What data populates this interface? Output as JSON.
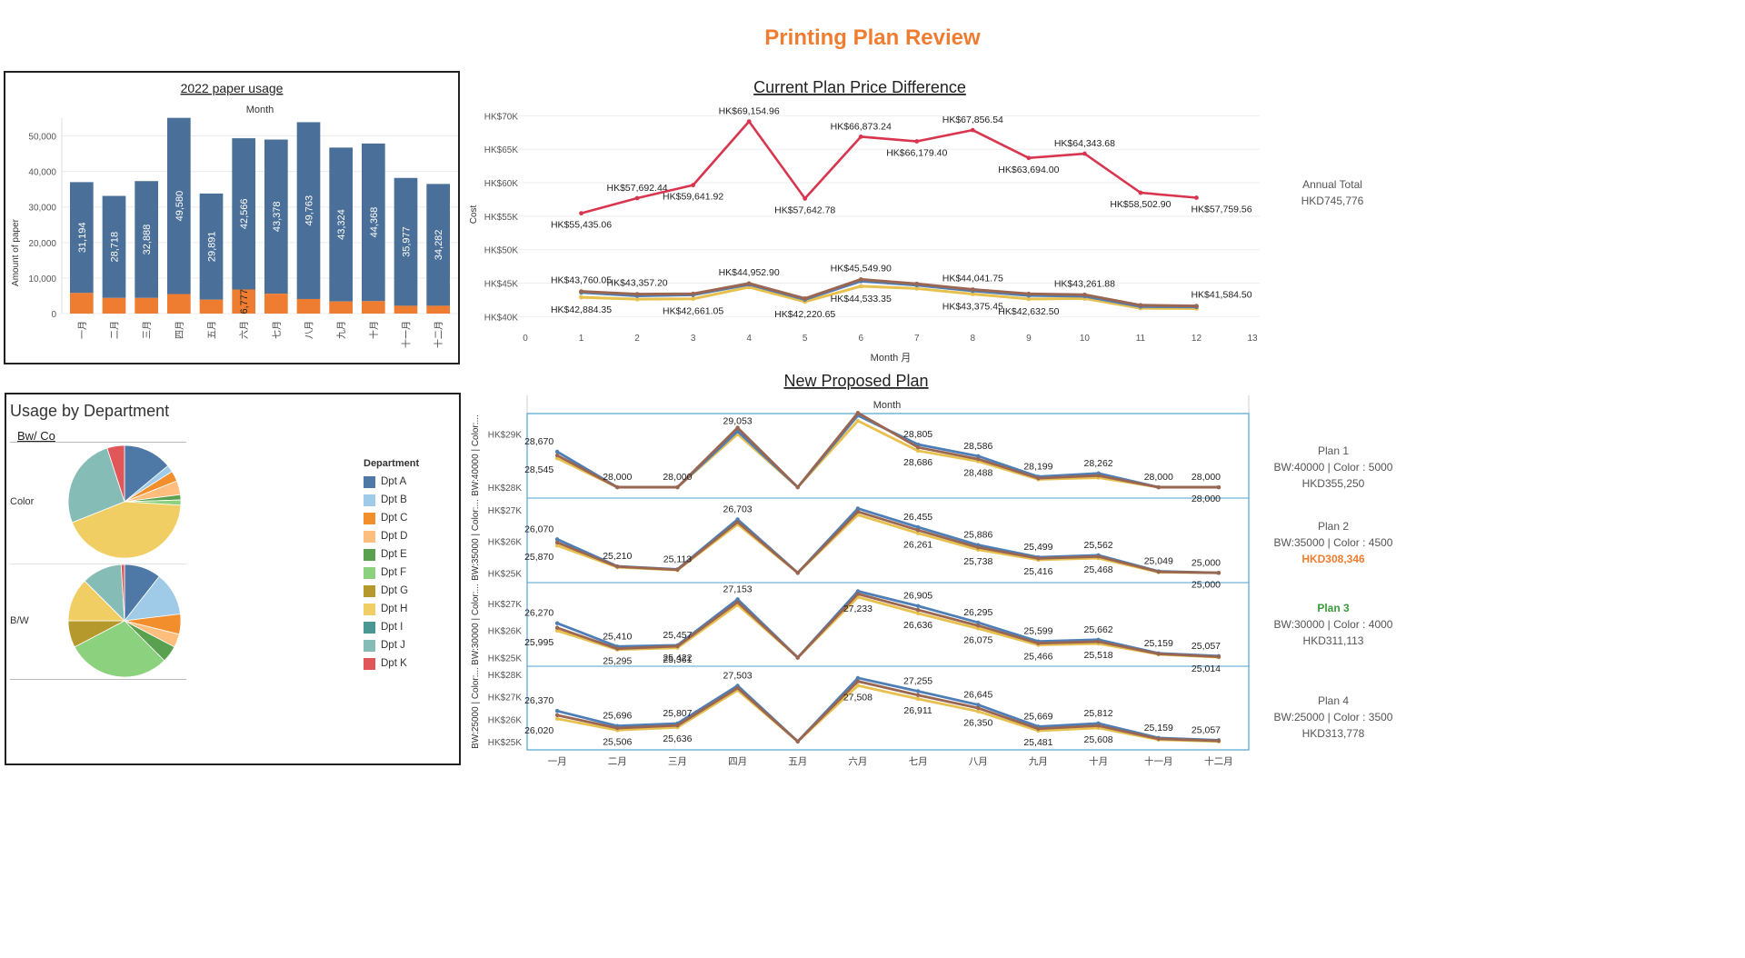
{
  "page_title": "Printing Plan Review",
  "colors": {
    "accent_orange": "#ef7d31",
    "bw_blue": "#4a6f98",
    "color_orange": "#ef7d31",
    "red_line": "#d9354f",
    "green_text": "#3a9b3a",
    "l_blue": "#4d7fb6",
    "l_brown": "#9a6652",
    "l_yellow": "#e7c04d"
  },
  "paper_usage": {
    "title": "2022 paper usage",
    "top_label": "Month",
    "ylabel": "Amount of paper",
    "yticks": [
      "50,000",
      "40,000",
      "30,000",
      "20,000",
      "10,000",
      "0"
    ]
  },
  "price_diff": {
    "title": "Current Plan Price Difference",
    "ylabel": "Cost",
    "xlabel": "Month 月",
    "yticks": [
      "HK$70K",
      "HK$65K",
      "HK$60K",
      "HK$55K",
      "HK$50K",
      "HK$45K",
      "HK$40K"
    ],
    "xticks": [
      "0",
      "1",
      "2",
      "3",
      "4",
      "5",
      "6",
      "7",
      "8",
      "9",
      "10",
      "11",
      "12",
      "13"
    ],
    "annual_label": "Annual Total",
    "annual_value": "HKD745,776"
  },
  "dept": {
    "title": "Usage by Department",
    "subtitle": "Bw/ Co",
    "row_labels": [
      "Color",
      "B/W"
    ],
    "legend_title": "Department"
  },
  "new_plan": {
    "title": "New Proposed Plan",
    "top_label": "Month",
    "rows": [
      {
        "axis_label": "BW:40000 | Color:...",
        "yticks": [
          "HK$29K",
          "HK$28K"
        ],
        "plan": "Plan 1",
        "detail": "BW:40000 | Color : 5000",
        "total": "HKD355,250"
      },
      {
        "axis_label": "BW:35000 | Color:...",
        "yticks": [
          "HK$27K",
          "HK$26K",
          "HK$25K"
        ],
        "plan": "Plan 2",
        "detail": "BW:35000 | Color : 4500",
        "total": "HKD308,346"
      },
      {
        "axis_label": "BW:30000 | Color:...",
        "yticks": [
          "HK$27K",
          "HK$26K",
          "HK$25K"
        ],
        "plan": "Plan 3",
        "detail": "BW:30000 | Color : 4000",
        "total": "HKD311,113"
      },
      {
        "axis_label": "BW:25000 | Color:...",
        "yticks": [
          "HK$28K",
          "HK$27K",
          "HK$26K",
          "HK$25K"
        ],
        "plan": "Plan 4",
        "detail": "BW:25000 | Color : 3500",
        "total": "HKD313,778"
      }
    ]
  },
  "chart_data": [
    {
      "type": "bar",
      "title": "2022 paper usage",
      "xlabel": "Month",
      "ylabel": "Amount of paper",
      "ylim": [
        0,
        55000
      ],
      "categories": [
        "一月",
        "二月",
        "三月",
        "四月",
        "五月",
        "六月",
        "七月",
        "八月",
        "九月",
        "十月",
        "十一月",
        "十二月"
      ],
      "series": [
        {
          "name": "B/W",
          "values": [
            31194,
            28718,
            32888,
            49580,
            29891,
            42566,
            43378,
            49763,
            43324,
            44368,
            35977,
            34282
          ],
          "labels": [
            "31,194",
            "28,718",
            "32,888",
            "49,580",
            "29,891",
            "42,566",
            "43,378",
            "49,763",
            "43,324",
            "44,368",
            "35,977",
            "34,282"
          ]
        },
        {
          "name": "Color",
          "values": [
            5800,
            4400,
            4400,
            5500,
            3900,
            6777,
            5600,
            4100,
            3400,
            3500,
            2200,
            2200
          ],
          "labels": [
            "",
            "",
            "",
            "",
            "",
            "6,777",
            "",
            "",
            "",
            "",
            "",
            ""
          ]
        }
      ]
    },
    {
      "type": "line",
      "title": "Current Plan Price Difference",
      "xlabel": "Month 月",
      "ylabel": "Cost",
      "xlim": [
        0,
        13
      ],
      "ylim": [
        39500,
        71000
      ],
      "x": [
        1,
        2,
        3,
        4,
        5,
        6,
        7,
        8,
        9,
        10,
        11,
        12
      ],
      "series": [
        {
          "values": [
            55435.06,
            57692.44,
            59641.92,
            69154.96,
            57642.78,
            66873.24,
            66179.4,
            67856.54,
            63694.0,
            64343.68,
            58502.9,
            57759.56
          ],
          "labels": [
            "HK$55,435.06",
            "HK$57,692.44",
            "HK$59,641.92",
            "HK$69,154.96",
            "HK$57,642.78",
            "HK$66,873.24",
            "HK$66,179.40",
            "HK$67,856.54",
            "HK$63,694.00",
            "HK$64,343.68",
            "HK$58,502.90",
            "HK$57,759.56"
          ]
        },
        {
          "values": [
            43760.05,
            43357.2,
            43400,
            44952.9,
            42700,
            45549.9,
            44900,
            44041.75,
            43400,
            43261.88,
            41700,
            41584.5
          ],
          "labels": [
            "HK$43,760.05",
            "HK$43,357.20",
            "",
            "HK$44,952.90",
            "",
            "HK$45,549.90",
            "",
            "HK$44,041.75",
            "",
            "HK$43,261.88",
            "",
            "HK$41,584.50"
          ]
        },
        {
          "values": [
            43600,
            43100,
            43250,
            44800,
            42550,
            45300,
            44700,
            43850,
            43150,
            43050,
            41500,
            41450
          ],
          "labels": [
            "",
            "",
            "",
            "",
            "",
            "",
            "",
            "",
            "",
            "",
            "",
            ""
          ]
        },
        {
          "values": [
            42884.35,
            42600,
            42661.05,
            44400,
            42220.65,
            44533.35,
            44200,
            43375.45,
            42632.5,
            42700,
            41250,
            41200
          ],
          "labels": [
            "HK$42,884.35",
            "",
            "HK$42,661.05",
            "",
            "HK$42,220.65",
            "HK$44,533.35",
            "",
            "HK$43,375.45",
            "HK$42,632.50",
            "",
            "",
            ""
          ]
        }
      ]
    },
    {
      "type": "pie",
      "title": "Usage by Department",
      "categories": [
        "Dpt A",
        "Dpt B",
        "Dpt C",
        "Dpt D",
        "Dpt E",
        "Dpt F",
        "Dpt G",
        "Dpt H",
        "Dpt I",
        "Dpt J",
        "Dpt K"
      ],
      "colors": [
        "#4e79a7",
        "#a0cbe8",
        "#f28e2b",
        "#ffbe7d",
        "#59a14f",
        "#8cd17d",
        "#b6992d",
        "#f1ce63",
        "#499894",
        "#86bcb6",
        "#e15759"
      ],
      "series": [
        {
          "name": "Color",
          "values": [
            14,
            2,
            3,
            4,
            1.5,
            1.5,
            0,
            43,
            0,
            26,
            5
          ]
        },
        {
          "name": "B/W",
          "values": [
            11,
            13,
            6,
            4,
            5,
            31,
            8,
            13,
            0,
            12,
            1
          ]
        }
      ]
    },
    {
      "type": "line",
      "title": "New Proposed Plan",
      "categories": [
        "一月",
        "二月",
        "三月",
        "四月",
        "五月",
        "六月",
        "七月",
        "八月",
        "九月",
        "十月",
        "十一月",
        "十二月"
      ],
      "panels": [
        {
          "name": "Plan 1",
          "ylim": [
            27950,
            29250
          ],
          "series": [
            {
              "values": [
                28670,
                28000,
                28000,
                29053,
                28000,
                29350,
                28805,
                28586,
                28199,
                28262,
                28000,
                28000
              ],
              "labels": [
                "28,670",
                "28,000",
                "28,000",
                "29,053",
                "",
                "",
                "28,805",
                "28,586",
                "28,199",
                "28,262",
                "28,000",
                "28,000"
              ]
            },
            {
              "values": [
                28545,
                28000,
                28000,
                29000,
                28000,
                29250,
                28686,
                28488,
                28150,
                28180,
                28000,
                28000
              ],
              "labels": [
                "28,545",
                "",
                "",
                "",
                "",
                "",
                "28,686",
                "28,488",
                "",
                "",
                "",
                "28,000"
              ]
            },
            {
              "values": [
                28600,
                28000,
                28000,
                29120,
                28000,
                29400,
                28750,
                28530,
                28170,
                28220,
                28000,
                28000
              ],
              "labels": [
                "",
                "",
                "",
                "",
                "",
                "",
                "",
                "",
                "",
                "",
                "",
                ""
              ]
            }
          ]
        },
        {
          "name": "Plan 2",
          "ylim": [
            24950,
            27150
          ],
          "series": [
            {
              "values": [
                26070,
                25210,
                25113,
                26703,
                25000,
                27050,
                26455,
                25886,
                25499,
                25562,
                25049,
                25000
              ],
              "labels": [
                "26,070",
                "25,210",
                "25,113",
                "26,703",
                "",
                "",
                "26,455",
                "25,886",
                "25,499",
                "25,562",
                "25,049",
                "25,000"
              ]
            },
            {
              "values": [
                25870,
                25180,
                25090,
                26550,
                25000,
                26850,
                26261,
                25738,
                25416,
                25468,
                25020,
                25000
              ],
              "labels": [
                "25,870",
                "",
                "",
                "",
                "",
                "",
                "26,261",
                "25,738",
                "25,416",
                "25,468",
                "",
                "25,000"
              ]
            },
            {
              "values": [
                25970,
                25200,
                25100,
                26620,
                25000,
                26950,
                26360,
                25810,
                25460,
                25520,
                25035,
                25000
              ],
              "labels": [
                "",
                "",
                "",
                "",
                "",
                "",
                "",
                "",
                "",
                "",
                "",
                ""
              ]
            }
          ]
        },
        {
          "name": "Plan 3",
          "ylim": [
            24950,
            27500
          ],
          "series": [
            {
              "values": [
                26270,
                25410,
                25457,
                27153,
                25000,
                27450,
                26905,
                26295,
                25599,
                25662,
                25159,
                25057
              ],
              "labels": [
                "26,270",
                "25,410",
                "25,457",
                "27,153",
                "",
                "",
                "26,905",
                "26,295",
                "25,599",
                "25,662",
                "25,159",
                "25,057"
              ]
            },
            {
              "values": [
                25995,
                25295,
                25361,
                26950,
                25000,
                27233,
                26636,
                26075,
                25466,
                25518,
                25120,
                25014
              ],
              "labels": [
                "25,995",
                "25,295",
                "25,361",
                "",
                "",
                "27,233",
                "26,636",
                "26,075",
                "25,466",
                "25,518",
                "",
                "25,014"
              ]
            },
            {
              "values": [
                26100,
                25330,
                25422,
                27050,
                25000,
                27350,
                26760,
                26180,
                25530,
                25590,
                25140,
                25030
              ],
              "labels": [
                "",
                "",
                "25,422",
                "",
                "",
                "",
                "",
                "",
                "",
                "",
                "",
                ""
              ]
            }
          ]
        },
        {
          "name": "Plan 4",
          "ylim": [
            24950,
            28050
          ],
          "series": [
            {
              "values": [
                26370,
                25696,
                25807,
                27503,
                25000,
                27850,
                27255,
                26645,
                25669,
                25812,
                25159,
                25057
              ],
              "labels": [
                "26,370",
                "25,696",
                "25,807",
                "27,503",
                "",
                "",
                "27,255",
                "26,645",
                "25,669",
                "25,812",
                "25,159",
                "25,057"
              ]
            },
            {
              "values": [
                26020,
                25506,
                25636,
                27300,
                25000,
                27508,
                26911,
                26350,
                25481,
                25608,
                25080,
                25000
              ],
              "labels": [
                "26,020",
                "25,506",
                "25,636",
                "",
                "",
                "27,508",
                "26,911",
                "26,350",
                "25,481",
                "25,608",
                "",
                ""
              ]
            },
            {
              "values": [
                26180,
                25600,
                25720,
                27400,
                25000,
                27700,
                27080,
                26500,
                25570,
                25710,
                25120,
                25030
              ],
              "labels": [
                "",
                "",
                "",
                "",
                "",
                "",
                "",
                "",
                "",
                "",
                "",
                ""
              ]
            }
          ]
        }
      ]
    }
  ]
}
